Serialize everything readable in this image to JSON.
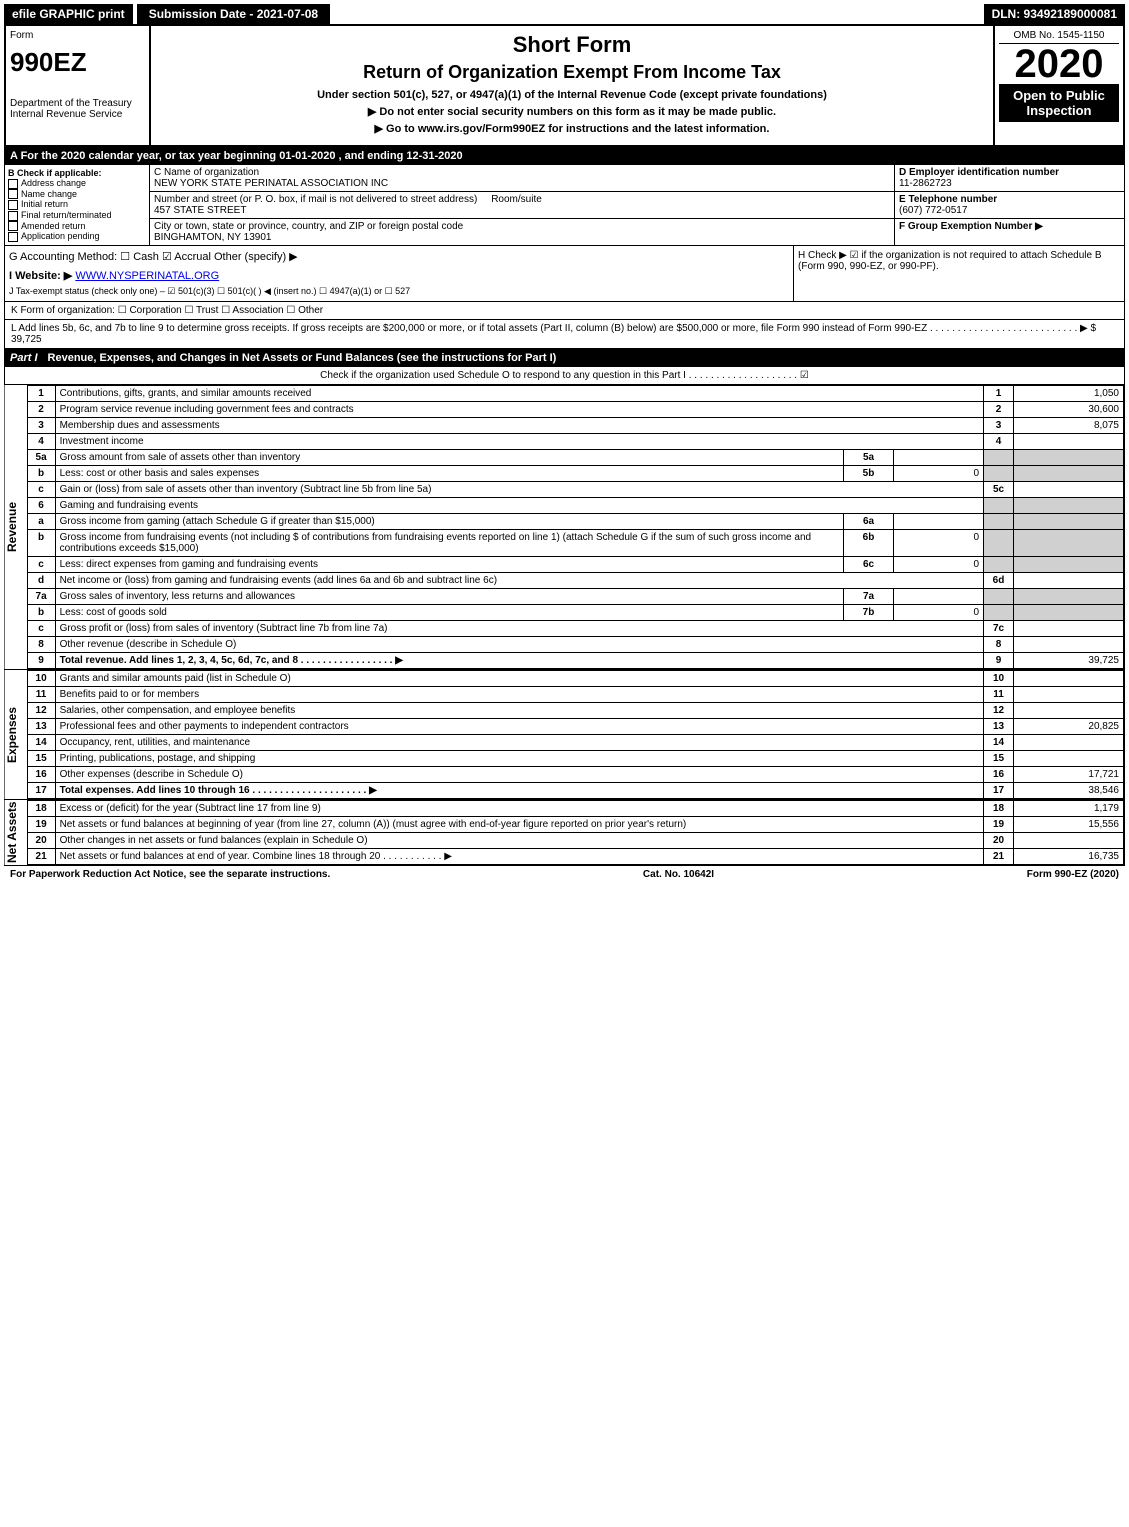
{
  "topbar": {
    "efile": "efile GRAPHIC print",
    "submission": "Submission Date - 2021-07-08",
    "dln": "DLN: 93492189000081"
  },
  "header": {
    "form_label": "Form",
    "form_no": "990EZ",
    "dept": "Department of the Treasury",
    "irs": "Internal Revenue Service",
    "title": "Short Form",
    "subtitle": "Return of Organization Exempt From Income Tax",
    "under": "Under section 501(c), 527, or 4947(a)(1) of the Internal Revenue Code (except private foundations)",
    "nossn": "▶ Do not enter social security numbers on this form as it may be made public.",
    "goto": "▶ Go to www.irs.gov/Form990EZ for instructions and the latest information.",
    "omb": "OMB No. 1545-1150",
    "year": "2020",
    "open": "Open to Public Inspection"
  },
  "lineA": "A For the 2020 calendar year, or tax year beginning 01-01-2020 , and ending 12-31-2020",
  "boxB": {
    "title": "B Check if applicable:",
    "items": [
      "Address change",
      "Name change",
      "Initial return",
      "Final return/terminated",
      "Amended return",
      "Application pending"
    ]
  },
  "boxC": {
    "name_label": "C Name of organization",
    "name": "NEW YORK STATE PERINATAL ASSOCIATION INC",
    "addr_label": "Number and street (or P. O. box, if mail is not delivered to street address)",
    "room_label": "Room/suite",
    "addr": "457 STATE STREET",
    "city_label": "City or town, state or province, country, and ZIP or foreign postal code",
    "city": "BINGHAMTON, NY  13901"
  },
  "boxR": {
    "d_label": "D Employer identification number",
    "ein": "11-2862723",
    "e_label": "E Telephone number",
    "phone": "(607) 772-0517",
    "f_label": "F Group Exemption Number  ▶"
  },
  "lineG": "G Accounting Method:   ☐ Cash   ☑ Accrual   Other (specify) ▶",
  "lineH": "H  Check ▶  ☑  if the organization is not required to attach Schedule B (Form 990, 990-EZ, or 990-PF).",
  "lineI": "I Website: ▶",
  "website": "WWW.NYSPERINATAL.ORG",
  "lineJ": "J Tax-exempt status (check only one) – ☑ 501(c)(3) ☐ 501(c)( ) ◀ (insert no.) ☐ 4947(a)(1) or ☐ 527",
  "lineK": "K Form of organization:   ☐ Corporation   ☐ Trust   ☐ Association   ☐ Other",
  "lineL": "L Add lines 5b, 6c, and 7b to line 9 to determine gross receipts. If gross receipts are $200,000 or more, or if total assets (Part II, column (B) below) are $500,000 or more, file Form 990 instead of Form 990-EZ  . . . . . . . . . . . . . . . . . . . . . . . . . . .  ▶ $ 39,725",
  "part1": {
    "label": "Part I",
    "title": "Revenue, Expenses, and Changes in Net Assets or Fund Balances (see the instructions for Part I)",
    "check": "Check if the organization used Schedule O to respond to any question in this Part I . . . . . . . . . . . . . . . . . . . .   ☑"
  },
  "rows": [
    {
      "n": "1",
      "d": "Contributions, gifts, grants, and similar amounts received",
      "amt": "1,050"
    },
    {
      "n": "2",
      "d": "Program service revenue including government fees and contracts",
      "amt": "30,600"
    },
    {
      "n": "3",
      "d": "Membership dues and assessments",
      "amt": "8,075"
    },
    {
      "n": "4",
      "d": "Investment income",
      "amt": ""
    },
    {
      "n": "5a",
      "d": "Gross amount from sale of assets other than inventory",
      "sub": "5a",
      "subamt": ""
    },
    {
      "n": "b",
      "d": "Less: cost or other basis and sales expenses",
      "sub": "5b",
      "subamt": "0"
    },
    {
      "n": "c",
      "d": "Gain or (loss) from sale of assets other than inventory (Subtract line 5b from line 5a)",
      "ln": "5c",
      "amt": ""
    },
    {
      "n": "6",
      "d": "Gaming and fundraising events"
    },
    {
      "n": "a",
      "d": "Gross income from gaming (attach Schedule G if greater than $15,000)",
      "sub": "6a",
      "subamt": ""
    },
    {
      "n": "b",
      "d": "Gross income from fundraising events (not including $           of contributions from fundraising events reported on line 1) (attach Schedule G if the sum of such gross income and contributions exceeds $15,000)",
      "sub": "6b",
      "subamt": "0"
    },
    {
      "n": "c",
      "d": "Less: direct expenses from gaming and fundraising events",
      "sub": "6c",
      "subamt": "0"
    },
    {
      "n": "d",
      "d": "Net income or (loss) from gaming and fundraising events (add lines 6a and 6b and subtract line 6c)",
      "ln": "6d",
      "amt": ""
    },
    {
      "n": "7a",
      "d": "Gross sales of inventory, less returns and allowances",
      "sub": "7a",
      "subamt": ""
    },
    {
      "n": "b",
      "d": "Less: cost of goods sold",
      "sub": "7b",
      "subamt": "0"
    },
    {
      "n": "c",
      "d": "Gross profit or (loss) from sales of inventory (Subtract line 7b from line 7a)",
      "ln": "7c",
      "amt": ""
    },
    {
      "n": "8",
      "d": "Other revenue (describe in Schedule O)",
      "ln": "8",
      "amt": ""
    },
    {
      "n": "9",
      "d": "Total revenue. Add lines 1, 2, 3, 4, 5c, 6d, 7c, and 8   . . . . . . . . . . . . . . . . .  ▶",
      "ln": "9",
      "amt": "39,725",
      "bold": true
    }
  ],
  "exp": [
    {
      "n": "10",
      "d": "Grants and similar amounts paid (list in Schedule O)",
      "amt": ""
    },
    {
      "n": "11",
      "d": "Benefits paid to or for members",
      "amt": ""
    },
    {
      "n": "12",
      "d": "Salaries, other compensation, and employee benefits",
      "amt": ""
    },
    {
      "n": "13",
      "d": "Professional fees and other payments to independent contractors",
      "amt": "20,825"
    },
    {
      "n": "14",
      "d": "Occupancy, rent, utilities, and maintenance",
      "amt": ""
    },
    {
      "n": "15",
      "d": "Printing, publications, postage, and shipping",
      "amt": ""
    },
    {
      "n": "16",
      "d": "Other expenses (describe in Schedule O)",
      "amt": "17,721"
    },
    {
      "n": "17",
      "d": "Total expenses. Add lines 10 through 16   . . . . . . . . . . . . . . . . . . . . .  ▶",
      "amt": "38,546",
      "bold": true
    }
  ],
  "net": [
    {
      "n": "18",
      "d": "Excess or (deficit) for the year (Subtract line 17 from line 9)",
      "amt": "1,179"
    },
    {
      "n": "19",
      "d": "Net assets or fund balances at beginning of year (from line 27, column (A)) (must agree with end-of-year figure reported on prior year's return)",
      "amt": "15,556"
    },
    {
      "n": "20",
      "d": "Other changes in net assets or fund balances (explain in Schedule O)",
      "amt": ""
    },
    {
      "n": "21",
      "d": "Net assets or fund balances at end of year. Combine lines 18 through 20   . . . . . . . . . . .  ▶",
      "amt": "16,735"
    }
  ],
  "sidelabels": {
    "rev": "Revenue",
    "exp": "Expenses",
    "net": "Net Assets"
  },
  "footer": {
    "left": "For Paperwork Reduction Act Notice, see the separate instructions.",
    "mid": "Cat. No. 10642I",
    "right": "Form 990-EZ (2020)"
  }
}
